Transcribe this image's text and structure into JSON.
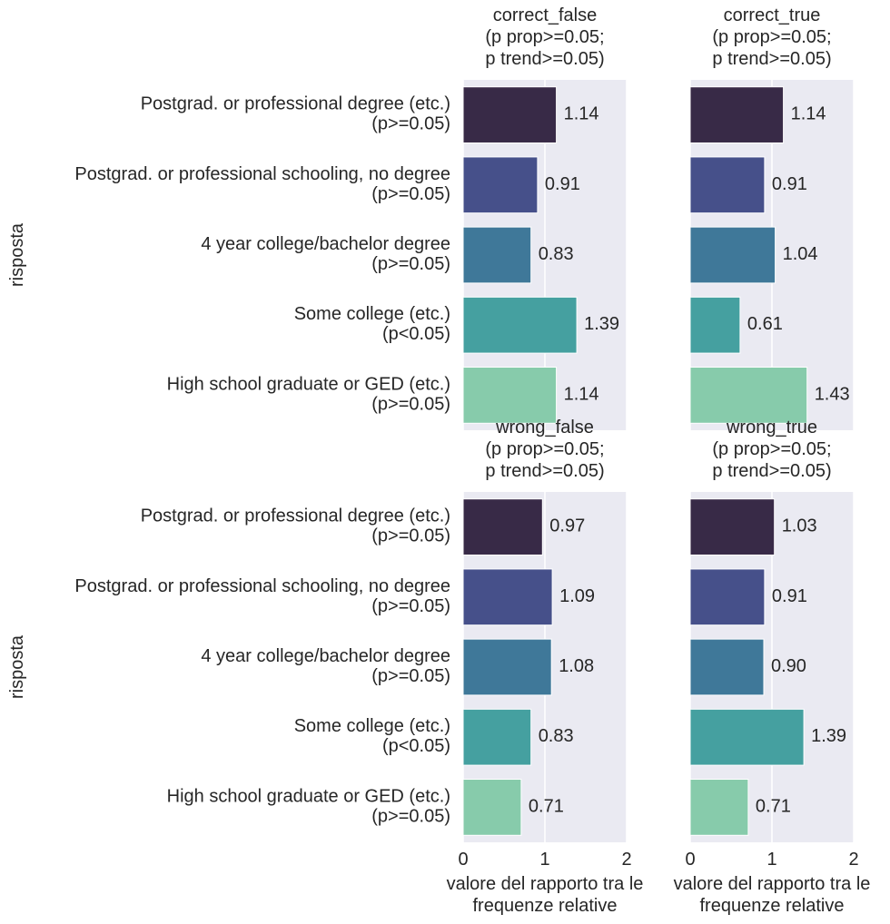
{
  "chart_data": [
    {
      "type": "barh",
      "title": "correct_false\n(p prop>=0.05;\np trend>=0.05)",
      "ylabel": "risposta",
      "categories": [
        "Postgrad. or professional degree (etc.)\n(p>=0.05)",
        "Postgrad. or professional schooling, no degree\n(p>=0.05)",
        "4 year college/bachelor degree\n(p>=0.05)",
        "Some college (etc.)\n(p<0.05)",
        "High school graduate or GED (etc.)\n(p>=0.05)"
      ],
      "values": [
        1.14,
        0.91,
        0.83,
        1.39,
        1.14
      ],
      "value_labels": [
        "1.14",
        "0.91",
        "0.83",
        "1.39",
        "1.14"
      ],
      "colors": [
        "#382a47",
        "#46508a",
        "#3f7899",
        "#45a0a0",
        "#87cbab"
      ],
      "xlim": [
        0,
        2
      ],
      "xticks": [
        0,
        1,
        2
      ],
      "grid": true
    },
    {
      "type": "barh",
      "title": "correct_true\n(p prop>=0.05;\np trend>=0.05)",
      "values": [
        1.14,
        0.91,
        1.04,
        0.61,
        1.43
      ],
      "value_labels": [
        "1.14",
        "0.91",
        "1.04",
        "0.61",
        "1.43"
      ],
      "colors": [
        "#382a47",
        "#46508a",
        "#3f7899",
        "#45a0a0",
        "#87cbab"
      ],
      "xlim": [
        0,
        2
      ],
      "xticks": [
        0,
        1,
        2
      ],
      "grid": true
    },
    {
      "type": "barh",
      "title": "wrong_false\n(p prop>=0.05;\np trend>=0.05)",
      "ylabel": "risposta",
      "xlabel": "valore del rapporto tra le\nfrequenze relative",
      "categories": [
        "Postgrad. or professional degree (etc.)\n(p>=0.05)",
        "Postgrad. or professional schooling, no degree\n(p>=0.05)",
        "4 year college/bachelor degree\n(p>=0.05)",
        "Some college (etc.)\n(p<0.05)",
        "High school graduate or GED (etc.)\n(p>=0.05)"
      ],
      "values": [
        0.97,
        1.09,
        1.08,
        0.83,
        0.71
      ],
      "value_labels": [
        "0.97",
        "1.09",
        "1.08",
        "0.83",
        "0.71"
      ],
      "colors": [
        "#382a47",
        "#46508a",
        "#3f7899",
        "#45a0a0",
        "#87cbab"
      ],
      "xlim": [
        0,
        2
      ],
      "xticks": [
        0,
        1,
        2
      ],
      "grid": true
    },
    {
      "type": "barh",
      "title": "wrong_true\n(p prop>=0.05;\np trend>=0.05)",
      "xlabel": "valore del rapporto tra le\nfrequenze relative",
      "values": [
        1.03,
        0.91,
        0.9,
        1.39,
        0.71
      ],
      "value_labels": [
        "1.03",
        "0.91",
        "0.90",
        "1.39",
        "0.71"
      ],
      "colors": [
        "#382a47",
        "#46508a",
        "#3f7899",
        "#45a0a0",
        "#87cbab"
      ],
      "xlim": [
        0,
        2
      ],
      "xticks": [
        0,
        1,
        2
      ],
      "grid": true
    }
  ]
}
